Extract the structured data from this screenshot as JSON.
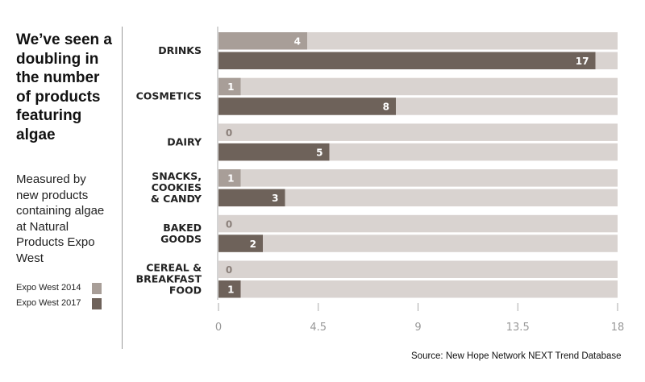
{
  "title": "We’ve seen a doubling in the number of products featuring algae",
  "subtitle": "Measured by new products containing algae at Natural Products Expo West",
  "source": "Source: New Hope Network NEXT Trend Database",
  "colors": {
    "track": "#d9d3d0",
    "series_2014": "#a89e98",
    "series_2017": "#6e625a"
  },
  "chart_data": {
    "type": "bar",
    "orientation": "horizontal",
    "categories": [
      [
        "DRINKS"
      ],
      [
        "COSMETICS"
      ],
      [
        "DAIRY"
      ],
      [
        "SNACKS,",
        "COOKIES",
        "& CANDY"
      ],
      [
        "BAKED",
        "GOODS"
      ],
      [
        "CEREAL &",
        "BREAKFAST",
        "FOOD"
      ]
    ],
    "series": [
      {
        "name": "Expo West 2014",
        "values": [
          4,
          1,
          0,
          1,
          0,
          0
        ]
      },
      {
        "name": "Expo West 2017",
        "values": [
          17,
          8,
          5,
          3,
          2,
          1
        ]
      }
    ],
    "xlim": [
      0,
      18
    ],
    "xticks": [
      "0",
      "4.5",
      "9",
      "13.5",
      "18"
    ],
    "legend": "left",
    "grid": false
  }
}
